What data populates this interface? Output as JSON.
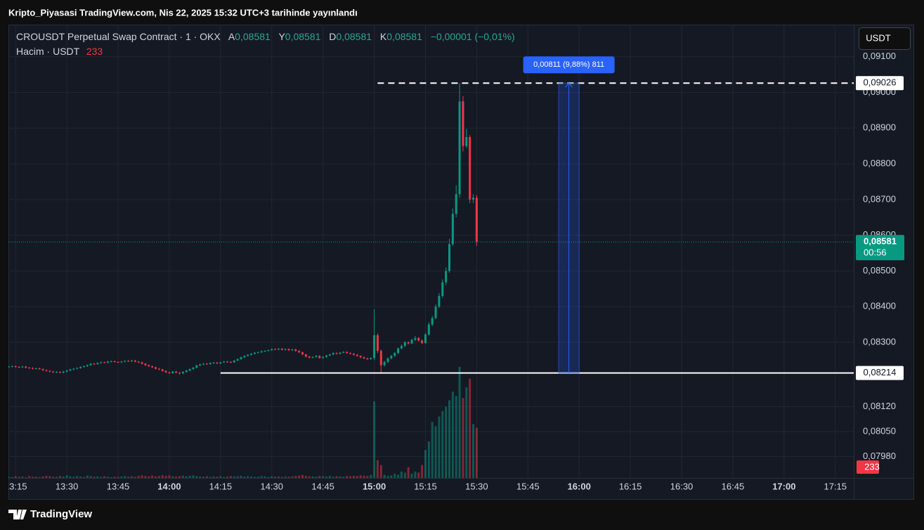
{
  "header": {
    "title": "Kripto_Piyasasi TradingView.com, Nis 22, 2025 15:32 UTC+3 tarihinde yayınlandı"
  },
  "footer": {
    "brand": "TradingView"
  },
  "chart_data": {
    "type": "candlestick",
    "title": "CROUSDT Perpetual Swap Contract · 1 · OKX",
    "legend_ohlc": [
      {
        "key": "A",
        "value": "0,08581"
      },
      {
        "key": "Y",
        "value": "0,08581"
      },
      {
        "key": "D",
        "value": "0,08581"
      },
      {
        "key": "K",
        "value": "0,08581"
      }
    ],
    "change": "−0,00001 (−0,01%)",
    "volume_title": "Hacim · USDT",
    "currency": "USDT",
    "colors": {
      "up": "#089981",
      "down": "#f23645"
    },
    "grid": true,
    "xlim": [
      792.9,
      1040.4
    ],
    "xticks": [
      {
        "value": 795,
        "label": "13:15"
      },
      {
        "value": 810,
        "label": "13:30"
      },
      {
        "value": 825,
        "label": "13:45"
      },
      {
        "value": 840,
        "label": "14:00"
      },
      {
        "value": 855,
        "label": "14:15"
      },
      {
        "value": 870,
        "label": "14:30"
      },
      {
        "value": 885,
        "label": "14:45"
      },
      {
        "value": 900,
        "label": "15:00"
      },
      {
        "value": 915,
        "label": "15:15"
      },
      {
        "value": 930,
        "label": "15:30"
      },
      {
        "value": 945,
        "label": "15:45"
      },
      {
        "value": 960,
        "label": "16:00"
      },
      {
        "value": 975,
        "label": "16:15"
      },
      {
        "value": 990,
        "label": "16:30"
      },
      {
        "value": 1005,
        "label": "16:45"
      },
      {
        "value": 1020,
        "label": "17:00"
      },
      {
        "value": 1035,
        "label": "17:15"
      }
    ],
    "ylim": [
      0.0792,
      0.0919
    ],
    "yticks": [
      {
        "value": 0.091,
        "label": "0,09100"
      },
      {
        "value": 0.09,
        "label": "0,09000"
      },
      {
        "value": 0.089,
        "label": "0,08900"
      },
      {
        "value": 0.088,
        "label": "0,08800"
      },
      {
        "value": 0.087,
        "label": "0,08700"
      },
      {
        "value": 0.086,
        "label": "0,08600"
      },
      {
        "value": 0.085,
        "label": "0,08500"
      },
      {
        "value": 0.084,
        "label": "0,08400"
      },
      {
        "value": 0.083,
        "label": "0,08300"
      },
      {
        "value": 0.0812,
        "label": "0,08120"
      },
      {
        "value": 0.0805,
        "label": "0,08050"
      },
      {
        "value": 0.0798,
        "label": "0,07980"
      }
    ],
    "volume_lim": [
      0,
      2100
    ],
    "last_price": {
      "value": 0.08581,
      "label": "0,08581",
      "countdown": "00:56"
    },
    "levels": [
      {
        "value": 0.09026,
        "label": "0,09026",
        "from_x": 901,
        "style": "dashed"
      },
      {
        "value": 0.08214,
        "label": "0,08214",
        "from_x": 855,
        "style": "solid"
      }
    ],
    "measure": {
      "from": 0.08214,
      "to": 0.09026,
      "x": [
        954,
        960
      ],
      "label": "0,00811 (9,88%) 811"
    },
    "x": [
      793,
      794,
      795,
      796,
      797,
      798,
      799,
      800,
      801,
      802,
      803,
      804,
      805,
      806,
      807,
      808,
      809,
      810,
      811,
      812,
      813,
      814,
      815,
      816,
      817,
      818,
      819,
      820,
      821,
      822,
      823,
      824,
      825,
      826,
      827,
      828,
      829,
      830,
      831,
      832,
      833,
      834,
      835,
      836,
      837,
      838,
      839,
      840,
      841,
      842,
      843,
      844,
      845,
      846,
      847,
      848,
      849,
      850,
      851,
      852,
      853,
      854,
      855,
      856,
      857,
      858,
      859,
      860,
      861,
      862,
      863,
      864,
      865,
      866,
      867,
      868,
      869,
      870,
      871,
      872,
      873,
      874,
      875,
      876,
      877,
      878,
      879,
      880,
      881,
      882,
      883,
      884,
      885,
      886,
      887,
      888,
      889,
      890,
      891,
      892,
      893,
      894,
      895,
      896,
      897,
      898,
      899,
      900,
      901,
      902,
      903,
      904,
      905,
      906,
      907,
      908,
      909,
      910,
      911,
      912,
      913,
      914,
      915,
      916,
      917,
      918,
      919,
      920,
      921,
      922,
      923,
      924,
      925,
      926,
      927,
      928,
      929,
      930
    ],
    "ohlc": [
      [
        0.08231,
        0.08234,
        0.08229,
        0.08232
      ],
      [
        0.08232,
        0.08235,
        0.0823,
        0.08233
      ],
      [
        0.08233,
        0.08235,
        0.08229,
        0.08231
      ],
      [
        0.08231,
        0.08233,
        0.08228,
        0.0823
      ],
      [
        0.0823,
        0.08234,
        0.08228,
        0.08232
      ],
      [
        0.08232,
        0.08234,
        0.08227,
        0.08229
      ],
      [
        0.08229,
        0.08231,
        0.08226,
        0.08228
      ],
      [
        0.08228,
        0.0823,
        0.08224,
        0.08226
      ],
      [
        0.08226,
        0.08229,
        0.08224,
        0.08227
      ],
      [
        0.08227,
        0.08229,
        0.08223,
        0.08225
      ],
      [
        0.08225,
        0.08227,
        0.0822,
        0.08222
      ],
      [
        0.08222,
        0.08224,
        0.08218,
        0.0822
      ],
      [
        0.0822,
        0.08222,
        0.08216,
        0.08218
      ],
      [
        0.08218,
        0.0822,
        0.08214,
        0.08216
      ],
      [
        0.08216,
        0.08219,
        0.08214,
        0.08217
      ],
      [
        0.08217,
        0.08219,
        0.08213,
        0.08215
      ],
      [
        0.08215,
        0.0822,
        0.08213,
        0.08218
      ],
      [
        0.08218,
        0.08223,
        0.08216,
        0.08221
      ],
      [
        0.08221,
        0.08226,
        0.08219,
        0.08224
      ],
      [
        0.08224,
        0.08228,
        0.08222,
        0.08226
      ],
      [
        0.08226,
        0.0823,
        0.08224,
        0.08228
      ],
      [
        0.08228,
        0.08233,
        0.08226,
        0.08231
      ],
      [
        0.08231,
        0.08235,
        0.08229,
        0.08233
      ],
      [
        0.08233,
        0.08238,
        0.08231,
        0.08236
      ],
      [
        0.08236,
        0.08242,
        0.08234,
        0.0824
      ],
      [
        0.0824,
        0.08242,
        0.08237,
        0.08239
      ],
      [
        0.08239,
        0.08244,
        0.08237,
        0.08242
      ],
      [
        0.08242,
        0.08246,
        0.0824,
        0.08244
      ],
      [
        0.08244,
        0.08246,
        0.08241,
        0.08243
      ],
      [
        0.08243,
        0.08248,
        0.08241,
        0.08246
      ],
      [
        0.08246,
        0.08249,
        0.08244,
        0.08247
      ],
      [
        0.08247,
        0.08249,
        0.08243,
        0.08245
      ],
      [
        0.08245,
        0.08247,
        0.08242,
        0.08244
      ],
      [
        0.08244,
        0.08248,
        0.08242,
        0.08246
      ],
      [
        0.08246,
        0.0825,
        0.08244,
        0.08248
      ],
      [
        0.08248,
        0.0825,
        0.08245,
        0.08247
      ],
      [
        0.08247,
        0.08251,
        0.08245,
        0.08249
      ],
      [
        0.08249,
        0.08251,
        0.08244,
        0.08246
      ],
      [
        0.08246,
        0.08248,
        0.08242,
        0.08244
      ],
      [
        0.08244,
        0.08246,
        0.08238,
        0.0824
      ],
      [
        0.0824,
        0.08242,
        0.08234,
        0.08236
      ],
      [
        0.08236,
        0.08238,
        0.08231,
        0.08233
      ],
      [
        0.08233,
        0.08235,
        0.08228,
        0.0823
      ],
      [
        0.0823,
        0.08232,
        0.08224,
        0.08226
      ],
      [
        0.08226,
        0.08228,
        0.08222,
        0.08224
      ],
      [
        0.08224,
        0.08226,
        0.08218,
        0.0822
      ],
      [
        0.0822,
        0.08222,
        0.08214,
        0.08216
      ],
      [
        0.08216,
        0.08218,
        0.08211,
        0.08214
      ],
      [
        0.08214,
        0.0822,
        0.08212,
        0.08218
      ],
      [
        0.08218,
        0.0822,
        0.08213,
        0.08215
      ],
      [
        0.08215,
        0.08217,
        0.0821,
        0.08213
      ],
      [
        0.08213,
        0.08219,
        0.08211,
        0.08217
      ],
      [
        0.08217,
        0.08223,
        0.08215,
        0.08221
      ],
      [
        0.08221,
        0.08227,
        0.08219,
        0.08225
      ],
      [
        0.08225,
        0.08231,
        0.08223,
        0.08229
      ],
      [
        0.08229,
        0.08237,
        0.08227,
        0.08235
      ],
      [
        0.08235,
        0.0824,
        0.08233,
        0.08238
      ],
      [
        0.08238,
        0.08242,
        0.08236,
        0.0824
      ],
      [
        0.0824,
        0.08242,
        0.08237,
        0.08239
      ],
      [
        0.08239,
        0.08244,
        0.08237,
        0.08242
      ],
      [
        0.08242,
        0.08245,
        0.0824,
        0.08243
      ],
      [
        0.08243,
        0.08245,
        0.08239,
        0.08241
      ],
      [
        0.08241,
        0.08246,
        0.08239,
        0.08244
      ],
      [
        0.08244,
        0.08248,
        0.08242,
        0.08246
      ],
      [
        0.08246,
        0.08248,
        0.08243,
        0.08245
      ],
      [
        0.08245,
        0.08247,
        0.08242,
        0.08244
      ],
      [
        0.08244,
        0.08251,
        0.08242,
        0.08249
      ],
      [
        0.08249,
        0.08255,
        0.08247,
        0.08253
      ],
      [
        0.08253,
        0.0826,
        0.08251,
        0.08258
      ],
      [
        0.08258,
        0.08264,
        0.08256,
        0.08262
      ],
      [
        0.08262,
        0.08267,
        0.0826,
        0.08265
      ],
      [
        0.08265,
        0.0827,
        0.08263,
        0.08268
      ],
      [
        0.08268,
        0.08273,
        0.08266,
        0.08271
      ],
      [
        0.08271,
        0.08274,
        0.08269,
        0.08272
      ],
      [
        0.08272,
        0.08277,
        0.0827,
        0.08275
      ],
      [
        0.08275,
        0.08278,
        0.08273,
        0.08276
      ],
      [
        0.08276,
        0.0828,
        0.08274,
        0.08278
      ],
      [
        0.08278,
        0.08283,
        0.08276,
        0.08281
      ],
      [
        0.08281,
        0.08283,
        0.08278,
        0.0828
      ],
      [
        0.0828,
        0.08284,
        0.08278,
        0.08282
      ],
      [
        0.08282,
        0.08284,
        0.08277,
        0.08279
      ],
      [
        0.08279,
        0.08283,
        0.08277,
        0.08281
      ],
      [
        0.08281,
        0.08283,
        0.08276,
        0.08278
      ],
      [
        0.08278,
        0.08282,
        0.08276,
        0.0828
      ],
      [
        0.0828,
        0.08282,
        0.08274,
        0.08276
      ],
      [
        0.08276,
        0.08278,
        0.0827,
        0.08272
      ],
      [
        0.08272,
        0.08274,
        0.08264,
        0.08266
      ],
      [
        0.08266,
        0.08268,
        0.08258,
        0.0826
      ],
      [
        0.0826,
        0.08262,
        0.08255,
        0.08257
      ],
      [
        0.08257,
        0.08261,
        0.08255,
        0.08259
      ],
      [
        0.08259,
        0.08264,
        0.08257,
        0.08262
      ],
      [
        0.08262,
        0.08264,
        0.08254,
        0.08256
      ],
      [
        0.08256,
        0.08261,
        0.08254,
        0.08259
      ],
      [
        0.08259,
        0.08265,
        0.08257,
        0.08263
      ],
      [
        0.08263,
        0.08268,
        0.08261,
        0.08266
      ],
      [
        0.08266,
        0.08272,
        0.08264,
        0.0827
      ],
      [
        0.0827,
        0.08272,
        0.08266,
        0.08268
      ],
      [
        0.08268,
        0.08273,
        0.08266,
        0.08271
      ],
      [
        0.08271,
        0.08275,
        0.08269,
        0.08273
      ],
      [
        0.08273,
        0.08275,
        0.08268,
        0.0827
      ],
      [
        0.0827,
        0.08272,
        0.08266,
        0.08268
      ],
      [
        0.08268,
        0.0827,
        0.08263,
        0.08265
      ],
      [
        0.08265,
        0.08267,
        0.0826,
        0.08262
      ],
      [
        0.08262,
        0.08264,
        0.08256,
        0.08258
      ],
      [
        0.08258,
        0.0826,
        0.08253,
        0.08255
      ],
      [
        0.08255,
        0.08257,
        0.08251,
        0.08253
      ],
      [
        0.08253,
        0.08258,
        0.08251,
        0.08256
      ],
      [
        0.08256,
        0.08393,
        0.0825,
        0.0832
      ],
      [
        0.0832,
        0.08325,
        0.0827,
        0.08276
      ],
      [
        0.08276,
        0.0828,
        0.08212,
        0.08236
      ],
      [
        0.08236,
        0.08248,
        0.08232,
        0.08245
      ],
      [
        0.08245,
        0.08258,
        0.08242,
        0.08255
      ],
      [
        0.08255,
        0.08265,
        0.08252,
        0.08262
      ],
      [
        0.08262,
        0.08273,
        0.08259,
        0.0827
      ],
      [
        0.0827,
        0.08286,
        0.08267,
        0.08283
      ],
      [
        0.08283,
        0.08294,
        0.0828,
        0.0829
      ],
      [
        0.0829,
        0.08304,
        0.08287,
        0.083
      ],
      [
        0.083,
        0.08303,
        0.08294,
        0.08297
      ],
      [
        0.08297,
        0.0831,
        0.08295,
        0.08307
      ],
      [
        0.08307,
        0.08318,
        0.08304,
        0.08312
      ],
      [
        0.08312,
        0.08315,
        0.08302,
        0.08305
      ],
      [
        0.08305,
        0.08308,
        0.08295,
        0.08298
      ],
      [
        0.08298,
        0.08326,
        0.08296,
        0.08322
      ],
      [
        0.08322,
        0.08356,
        0.08319,
        0.0835
      ],
      [
        0.0835,
        0.08374,
        0.08345,
        0.08368
      ],
      [
        0.08368,
        0.08406,
        0.08364,
        0.084
      ],
      [
        0.084,
        0.08438,
        0.08396,
        0.0843
      ],
      [
        0.0843,
        0.08476,
        0.08425,
        0.08468
      ],
      [
        0.08468,
        0.0851,
        0.0846,
        0.085
      ],
      [
        0.085,
        0.0859,
        0.08495,
        0.08575
      ],
      [
        0.08575,
        0.08675,
        0.0857,
        0.0866
      ],
      [
        0.0866,
        0.0874,
        0.0865,
        0.08715
      ],
      [
        0.08715,
        0.09026,
        0.08705,
        0.08975
      ],
      [
        0.08975,
        0.0899,
        0.08835,
        0.0885
      ],
      [
        0.0885,
        0.08898,
        0.08845,
        0.08875
      ],
      [
        0.08875,
        0.0888,
        0.0869,
        0.087
      ],
      [
        0.087,
        0.08715,
        0.0869,
        0.08705
      ],
      [
        0.08705,
        0.08712,
        0.0857,
        0.08581
      ]
    ],
    "volume": [
      6,
      4,
      8,
      5,
      7,
      3,
      9,
      5,
      6,
      4,
      7,
      10,
      8,
      6,
      5,
      9,
      7,
      12,
      8,
      6,
      9,
      7,
      5,
      11,
      8,
      6,
      7,
      5,
      8,
      6,
      4,
      6,
      5,
      7,
      9,
      6,
      8,
      5,
      10,
      12,
      9,
      8,
      11,
      7,
      9,
      13,
      10,
      12,
      8,
      7,
      9,
      11,
      8,
      10,
      12,
      9,
      7,
      6,
      8,
      5,
      7,
      6,
      8,
      5,
      6,
      9,
      7,
      8,
      10,
      6,
      8,
      7,
      5,
      6,
      9,
      7,
      5,
      8,
      6,
      7,
      5,
      7,
      6,
      8,
      9,
      11,
      14,
      10,
      8,
      7,
      6,
      9,
      8,
      7,
      10,
      6,
      8,
      7,
      6,
      9,
      8,
      10,
      9,
      12,
      11,
      9,
      14,
      355,
      82,
      60,
      15,
      10,
      12,
      20,
      15,
      30,
      25,
      50,
      20,
      30,
      25,
      60,
      130,
      170,
      260,
      240,
      285,
      310,
      330,
      360,
      400,
      380,
      515,
      370,
      420,
      460,
      250,
      233
    ]
  }
}
